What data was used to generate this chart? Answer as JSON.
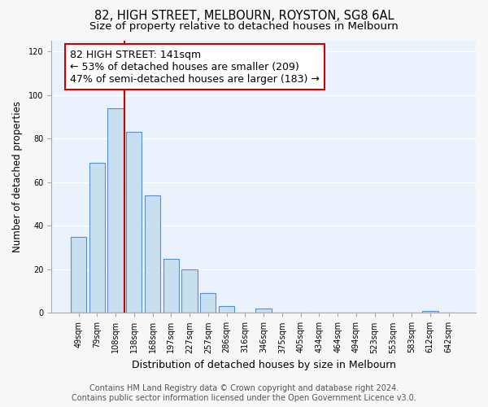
{
  "title": "82, HIGH STREET, MELBOURN, ROYSTON, SG8 6AL",
  "subtitle": "Size of property relative to detached houses in Melbourn",
  "xlabel": "Distribution of detached houses by size in Melbourn",
  "ylabel": "Number of detached properties",
  "bar_labels": [
    "49sqm",
    "79sqm",
    "108sqm",
    "138sqm",
    "168sqm",
    "197sqm",
    "227sqm",
    "257sqm",
    "286sqm",
    "316sqm",
    "346sqm",
    "375sqm",
    "405sqm",
    "434sqm",
    "464sqm",
    "494sqm",
    "523sqm",
    "553sqm",
    "583sqm",
    "612sqm",
    "642sqm"
  ],
  "bar_values": [
    35,
    69,
    94,
    83,
    54,
    25,
    20,
    9,
    3,
    0,
    2,
    0,
    0,
    0,
    0,
    0,
    0,
    0,
    0,
    1,
    0
  ],
  "bar_color": "#c8dff0",
  "bar_edge_color": "#5b8fc9",
  "vline_x_index": 3,
  "vline_color": "#cc0000",
  "annotation_text": "82 HIGH STREET: 141sqm\n← 53% of detached houses are smaller (209)\n47% of semi-detached houses are larger (183) →",
  "annotation_box_color": "white",
  "annotation_box_edge_color": "#cc0000",
  "ylim": [
    0,
    125
  ],
  "yticks": [
    0,
    20,
    40,
    60,
    80,
    100,
    120
  ],
  "footer_line1": "Contains HM Land Registry data © Crown copyright and database right 2024.",
  "footer_line2": "Contains public sector information licensed under the Open Government Licence v3.0.",
  "plot_bg_color": "#eaf2fb",
  "fig_bg_color": "#f7f7f7",
  "grid_color": "white",
  "title_fontsize": 10.5,
  "subtitle_fontsize": 9.5,
  "annotation_fontsize": 9,
  "footer_fontsize": 7,
  "ylabel_fontsize": 8.5,
  "xlabel_fontsize": 9
}
